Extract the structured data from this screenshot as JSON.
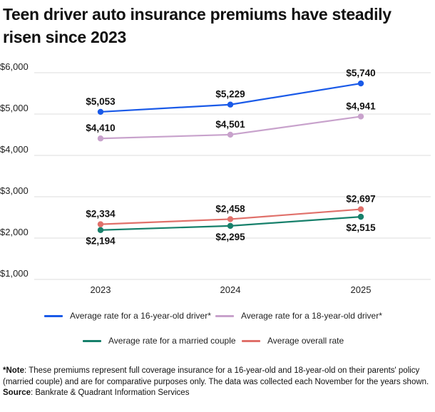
{
  "title": "Teen driver auto insurance premiums have steadily risen since 2023",
  "chart_data": {
    "type": "line",
    "title": "Teen driver auto insurance premiums have steadily risen since 2023",
    "categories": [
      "2023",
      "2024",
      "2025"
    ],
    "ylim": [
      1000,
      6000
    ],
    "yticks": [
      1000,
      2000,
      3000,
      4000,
      5000,
      6000
    ],
    "ytick_labels": [
      "$1,000",
      "$2,000",
      "$3,000",
      "$4,000",
      "$5,000",
      "$6,000"
    ],
    "grid": true,
    "legend_position": "bottom",
    "series": [
      {
        "name": "Average rate for a 16-year-old driver*",
        "color": "#1a5ae8",
        "values": [
          5053,
          5229,
          5740
        ],
        "labels": [
          "$5,053",
          "$5,229",
          "$5,740"
        ],
        "label_side": "above"
      },
      {
        "name": "Average rate for a 18-year-old driver*",
        "color": "#c8a2cc",
        "values": [
          4410,
          4501,
          4941
        ],
        "labels": [
          "$4,410",
          "$4,501",
          "$4,941"
        ],
        "label_side": "above"
      },
      {
        "name": "Average rate for a married couple",
        "color": "#17806b",
        "values": [
          2194,
          2295,
          2515
        ],
        "labels": [
          "$2,194",
          "$2,295",
          "$2,515"
        ],
        "label_side": "below"
      },
      {
        "name": "Average overall rate",
        "color": "#e0706a",
        "values": [
          2334,
          2458,
          2697
        ],
        "labels": [
          "$2,334",
          "$2,458",
          "$2,697"
        ],
        "label_side": "above"
      }
    ]
  },
  "footnote": {
    "note_label": "*Note",
    "note_text": ": These premiums represent full coverage insurance for a 16-year-old and 18-year-old on their parents' policy (married couple) and are for comparative purposes only. The data was collected each November for the years shown.",
    "source_label": "Source",
    "source_text": ": Bankrate & Quadrant Information Services"
  }
}
